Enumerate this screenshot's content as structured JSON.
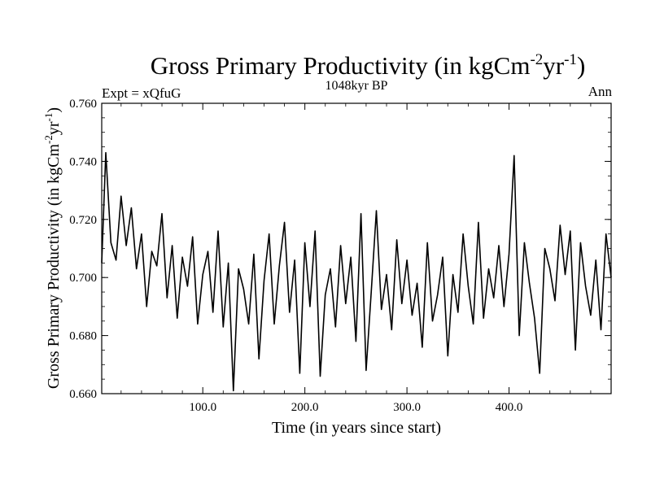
{
  "chart_data": {
    "type": "line",
    "title": "Gross Primary Productivity (in kgCm",
    "title_sup1": "-2",
    "title_mid": "yr",
    "title_sup2": "-1",
    "title_end": ")",
    "subtitle": "1048kyr BP",
    "expt_label": "Expt = xQfuG",
    "season_label": "Ann",
    "xlabel": "Time (in years since start)",
    "ylabel": "Gross Primary Productivity (in kgCm",
    "ylabel_sup1": "-2",
    "ylabel_mid": "yr",
    "ylabel_sup2": "-1",
    "ylabel_end": ")",
    "xlim": [
      1,
      500
    ],
    "ylim": [
      0.66,
      0.76
    ],
    "xticks": [
      100,
      200,
      300,
      400
    ],
    "xtick_labels": [
      "100.0",
      "200.0",
      "300.0",
      "400.0"
    ],
    "yticks": [
      0.66,
      0.68,
      0.7,
      0.72,
      0.74,
      0.76
    ],
    "ytick_labels": [
      "0.660",
      "0.680",
      "0.700",
      "0.720",
      "0.740",
      "0.760"
    ],
    "series": [
      {
        "name": "Gross Primary Productivity",
        "color": "#000000",
        "x": [
          1,
          5,
          10,
          15,
          20,
          25,
          30,
          35,
          40,
          45,
          50,
          55,
          60,
          65,
          70,
          75,
          80,
          85,
          90,
          95,
          100,
          105,
          110,
          115,
          120,
          125,
          130,
          135,
          140,
          145,
          150,
          155,
          160,
          165,
          170,
          175,
          180,
          185,
          190,
          195,
          200,
          205,
          210,
          215,
          220,
          225,
          230,
          235,
          240,
          245,
          250,
          255,
          260,
          265,
          270,
          275,
          280,
          285,
          290,
          295,
          300,
          305,
          310,
          315,
          320,
          325,
          330,
          335,
          340,
          345,
          350,
          355,
          360,
          365,
          370,
          375,
          380,
          385,
          390,
          395,
          400,
          405,
          410,
          415,
          420,
          425,
          430,
          435,
          440,
          445,
          450,
          455,
          460,
          465,
          470,
          475,
          480,
          485,
          490,
          495,
          500
        ],
        "values": [
          0.705,
          0.743,
          0.712,
          0.706,
          0.728,
          0.711,
          0.724,
          0.703,
          0.715,
          0.69,
          0.709,
          0.704,
          0.722,
          0.693,
          0.711,
          0.686,
          0.707,
          0.697,
          0.714,
          0.684,
          0.701,
          0.709,
          0.688,
          0.716,
          0.683,
          0.705,
          0.661,
          0.703,
          0.696,
          0.684,
          0.708,
          0.672,
          0.699,
          0.715,
          0.684,
          0.704,
          0.719,
          0.688,
          0.706,
          0.667,
          0.712,
          0.69,
          0.716,
          0.666,
          0.694,
          0.703,
          0.683,
          0.711,
          0.691,
          0.707,
          0.678,
          0.722,
          0.668,
          0.695,
          0.723,
          0.689,
          0.701,
          0.682,
          0.713,
          0.691,
          0.706,
          0.687,
          0.698,
          0.676,
          0.712,
          0.685,
          0.694,
          0.707,
          0.673,
          0.701,
          0.688,
          0.715,
          0.697,
          0.684,
          0.719,
          0.686,
          0.703,
          0.693,
          0.711,
          0.69,
          0.708,
          0.742,
          0.68,
          0.712,
          0.698,
          0.686,
          0.667,
          0.71,
          0.703,
          0.692,
          0.718,
          0.701,
          0.716,
          0.675,
          0.712,
          0.697,
          0.687,
          0.706,
          0.682,
          0.715,
          0.7
        ]
      }
    ]
  }
}
